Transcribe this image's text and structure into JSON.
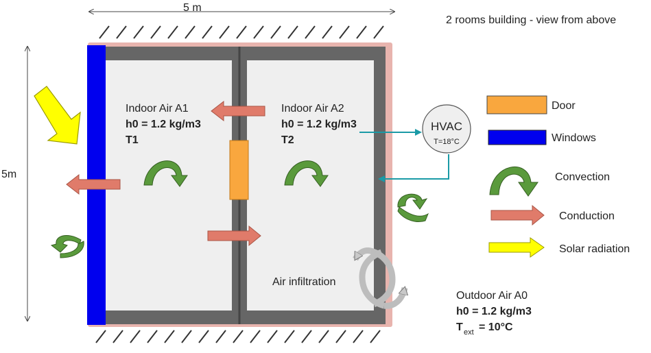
{
  "header": {
    "title": "2 rooms building - view from above"
  },
  "dimensions": {
    "width_label": "5 m",
    "height_label": "5m"
  },
  "room1": {
    "name": "Indoor Air A1",
    "density": "h0 = 1.2 kg/m3",
    "temp": "T1"
  },
  "room2": {
    "name": "Indoor Air A2",
    "density": "h0 = 1.2 kg/m3",
    "temp": "T2"
  },
  "hvac": {
    "label": "HVAC",
    "setpoint": "T=18°C"
  },
  "infiltration": {
    "label": "Air infiltration"
  },
  "outdoor": {
    "name": "Outdoor Air A0",
    "density": "h0 = 1.2 kg/m3",
    "temp_prefix": "T",
    "temp_sub": "ext",
    "temp_value": "= 10°C"
  },
  "legend": {
    "items": [
      {
        "label": "Door",
        "icon": "door-swatch",
        "color": "#f9a73e"
      },
      {
        "label": "Windows",
        "icon": "window-swatch",
        "color": "#0000ee"
      },
      {
        "label": "Convection",
        "icon": "convection-arrow",
        "color": "#5a9a3c"
      },
      {
        "label": "Conduction",
        "icon": "conduction-arrow",
        "color": "#e07b6a"
      },
      {
        "label": "Solar radiation",
        "icon": "solar-arrow",
        "color": "#ffff00"
      }
    ]
  },
  "colors": {
    "wall": "#666666",
    "floor": "#efefef",
    "insulation": "#e8b4ae",
    "window": "#0000ee",
    "door": "#f9a73e",
    "convection": "#5a9a3c",
    "conduction": "#e07b6a",
    "solar": "#ffff00",
    "hvac_line": "#1a9aa6",
    "infiltration": "#bdbdbd"
  }
}
